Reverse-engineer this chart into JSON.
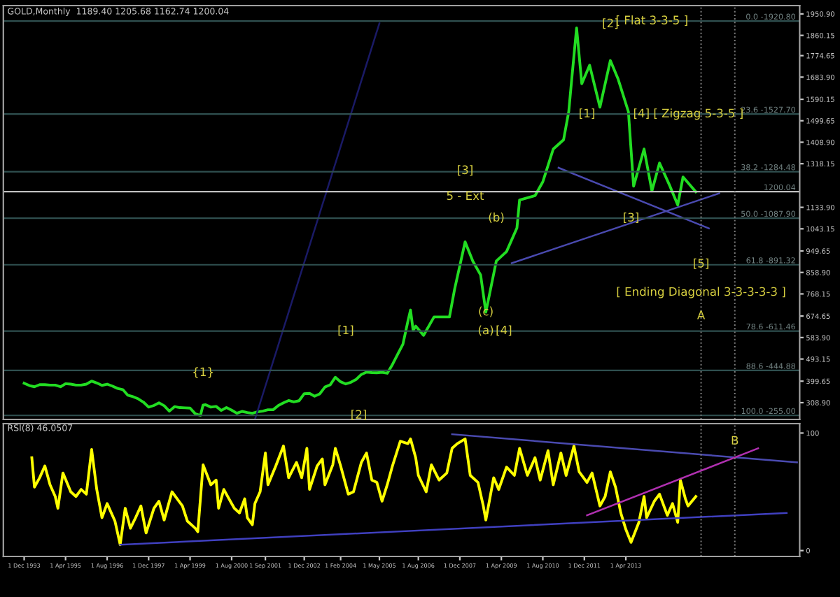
{
  "chart_data": [
    {
      "type": "line",
      "title": "GOLD,Monthly  1189.40 1205.68 1162.74 1200.04",
      "xlim": [
        "1993-04",
        "2018-11"
      ],
      "ylim": [
        238,
        1986
      ],
      "tick_labels": "y",
      "yticks": [
        {
          "value": 1950.9,
          "label": "1950.90"
        },
        {
          "value": 1860.15,
          "label": "1860.15"
        },
        {
          "value": 1774.65,
          "label": "1774.65"
        },
        {
          "value": 1683.9,
          "label": "1683.90"
        },
        {
          "value": 1590.15,
          "label": "1590.15"
        },
        {
          "value": 1499.65,
          "label": "1499.65"
        },
        {
          "value": 1408.9,
          "label": "1408.90"
        },
        {
          "value": 1318.15,
          "label": "1318.15"
        },
        {
          "value": 1133.9,
          "label": "1133.90"
        },
        {
          "value": 1043.15,
          "label": "1043.15"
        },
        {
          "value": 949.65,
          "label": "949.65"
        },
        {
          "value": 858.9,
          "label": "858.90"
        },
        {
          "value": 768.15,
          "label": "768.15"
        },
        {
          "value": 674.65,
          "label": "674.65"
        },
        {
          "value": 583.9,
          "label": "583.90"
        },
        {
          "value": 493.15,
          "label": "493.15"
        },
        {
          "value": 399.65,
          "label": "399.65"
        },
        {
          "value": 308.9,
          "label": "308.90"
        }
      ],
      "series": [
        {
          "color": "#22dd22",
          "x": [
            "1993-12",
            "1994-02",
            "1994-04",
            "1994-06",
            "1994-08",
            "1994-10",
            "1994-12",
            "1995-02",
            "1995-04",
            "1995-06",
            "1995-08",
            "1995-10",
            "1995-12",
            "1996-02",
            "1996-04",
            "1996-06",
            "1996-08",
            "1996-10",
            "1996-12",
            "1997-02",
            "1997-04",
            "1997-06",
            "1997-08",
            "1997-10",
            "1997-12",
            "1998-02",
            "1998-04",
            "1998-06",
            "1998-08",
            "1998-10",
            "1998-12",
            "1999-02",
            "1999-04",
            "1999-06",
            "1999-08",
            "1999-09",
            "1999-10",
            "1999-12",
            "2000-02",
            "2000-04",
            "2000-06",
            "2000-08",
            "2000-10",
            "2000-12",
            "2001-02",
            "2001-04",
            "2001-06",
            "2001-08",
            "2001-10",
            "2001-12",
            "2002-02",
            "2002-04",
            "2002-06",
            "2002-08",
            "2002-10",
            "2002-12",
            "2003-02",
            "2003-04",
            "2003-06",
            "2003-08",
            "2003-10",
            "2003-12",
            "2004-02",
            "2004-04",
            "2004-06",
            "2004-08",
            "2004-10",
            "2004-12",
            "2005-02",
            "2005-04",
            "2005-06",
            "2005-08",
            "2005-10",
            "2005-12",
            "2006-02",
            "2006-04",
            "2006-05",
            "2006-06",
            "2006-07",
            "2006-10",
            "2007-02",
            "2007-08",
            "2007-10",
            "2008-02",
            "2008-05",
            "2008-08",
            "2008-10",
            "2009-02",
            "2009-06",
            "2009-10",
            "2009-11",
            "2010-05",
            "2010-08",
            "2010-12",
            "2011-04",
            "2011-06",
            "2011-07",
            "2011-09",
            "2011-11",
            "2012-02",
            "2012-06",
            "2012-10",
            "2013-01",
            "2013-05",
            "2013-07",
            "2013-11",
            "2014-02",
            "2014-05",
            "2014-09",
            "2014-12",
            "2015-02",
            "2015-07"
          ],
          "values": [
            391,
            381,
            376,
            385,
            385,
            383,
            383,
            376,
            389,
            387,
            383,
            383,
            387,
            400,
            392,
            382,
            387,
            379,
            369,
            364,
            340,
            334,
            325,
            311,
            290,
            297,
            308,
            296,
            273,
            292,
            288,
            287,
            286,
            262,
            255,
            299,
            300,
            290,
            293,
            276,
            288,
            277,
            264,
            272,
            267,
            264,
            270,
            273,
            279,
            279,
            297,
            308,
            318,
            312,
            317,
            347,
            348,
            336,
            346,
            375,
            384,
            416,
            397,
            388,
            395,
            407,
            428,
            438,
            436,
            435,
            437,
            433,
            470,
            513,
            556,
            654,
            700,
            614,
            632,
            593,
            671,
            671,
            789,
            988,
            907,
            848,
            691,
            907,
            947,
            1047,
            1165,
            1183,
            1242,
            1380,
            1419,
            1538,
            1656,
            1892,
            1656,
            1734,
            1557,
            1754,
            1675,
            1538,
            1223,
            1380,
            1203,
            1321,
            1223,
            1144,
            1262,
            1200
          ]
        },
        {
          "type": "line",
          "color": "#4a4ab0",
          "x": [
            "2009-08",
            "2016-04"
          ],
          "values": [
            898,
            1193
          ]
        },
        {
          "type": "line",
          "color": "#4a4ab0",
          "x": [
            "2011-02",
            "2015-12"
          ],
          "values": [
            1301,
            1045
          ]
        },
        {
          "type": "line",
          "color": "#1a1a66",
          "x": [
            "2001-05",
            "2005-05"
          ],
          "values": [
            238,
            1911
          ]
        }
      ],
      "ref_lines": [
        {
          "axis": "y",
          "value": 1920.8,
          "label": "1920.80",
          "color": "#2f4f4f"
        },
        {
          "axis": "y",
          "value": 1527.7,
          "label": "1527.70",
          "color": "#2f4f4f"
        },
        {
          "axis": "y",
          "value": 1284.48,
          "label": "1284.48",
          "color": "#2f4f4f"
        },
        {
          "axis": "y",
          "value": 1087.9,
          "label": "1087.90",
          "color": "#2f4f4f"
        },
        {
          "axis": "y",
          "value": 891.32,
          "label": "891.32",
          "color": "#2f4f4f"
        },
        {
          "axis": "y",
          "value": 611.46,
          "label": "611.46",
          "color": "#2f4f4f"
        },
        {
          "axis": "y",
          "value": 444.88,
          "label": "444.88",
          "color": "#2f4f4f"
        },
        {
          "axis": "y",
          "value": 255.0,
          "label": "255.00",
          "color": "#2f4f4f"
        },
        {
          "axis": "y",
          "value": 1200.04,
          "label": "1200.04",
          "color": "#c0c0c0"
        },
        {
          "axis": "x",
          "value": "2015-09",
          "color": "#808080",
          "line_style": "dotted"
        },
        {
          "axis": "x",
          "value": "2016-10",
          "color": "#808080",
          "line_style": "dotted"
        }
      ],
      "annotations": [
        {
          "text": "0.0 -",
          "x": "2017-09",
          "y": 1920.8
        },
        {
          "text": "23.6 -",
          "x": "2017-09",
          "y": 1527.7
        },
        {
          "text": "38.2 -",
          "x": "2017-09",
          "y": 1284.48
        },
        {
          "text": "50.0 -",
          "x": "2017-09",
          "y": 1087.9
        },
        {
          "text": "61.8 -",
          "x": "2017-11",
          "y": 891.32
        },
        {
          "text": "78.6 -",
          "x": "2017-11",
          "y": 611.46
        },
        {
          "text": "88.6 -",
          "x": "2017-11",
          "y": 444.88
        },
        {
          "text": "100.0 -",
          "x": "2017-11",
          "y": 255.0
        },
        {
          "text": "{1}",
          "x": "1999-09",
          "y": 435
        },
        {
          "text": "[1]",
          "x": "2004-04",
          "y": 611.46
        },
        {
          "text": "[2]",
          "x": "2004-09",
          "y": 255.0
        },
        {
          "text": "[3]",
          "x": "2008-02",
          "y": 1288
        },
        {
          "text": "5 - Ext",
          "x": "2008-02",
          "y": 1179
        },
        {
          "text": "(b)",
          "x": "2009-02",
          "y": 1087.9
        },
        {
          "text": "(c)",
          "x": "2008-10",
          "y": 691
        },
        {
          "text": "(a)",
          "x": "2008-10",
          "y": 611.46
        },
        {
          "text": "[4]",
          "x": "2009-05",
          "y": 611.46
        },
        {
          "text": "[1]",
          "x": "2012-01",
          "y": 1527.7
        },
        {
          "text": "[2]",
          "x": "2012-10",
          "y": 1908
        },
        {
          "text": "[ Flat 3-3-5 ]",
          "x": "2014-02",
          "y": 1920.8
        },
        {
          "text": "[4]",
          "x": "2013-10",
          "y": 1527.7
        },
        {
          "text": "[ Zigzag 5-3-5 ]",
          "x": "2015-08",
          "y": 1527.7
        },
        {
          "text": "[3]",
          "x": "2013-06",
          "y": 1087.9
        },
        {
          "text": "[5]",
          "x": "2015-09",
          "y": 894
        },
        {
          "text": "[ Ending Diagonal 3-3-3-3-3 ]",
          "x": "2015-09",
          "y": 774
        },
        {
          "text": "A",
          "x": "2015-09",
          "y": 675
        }
      ]
    },
    {
      "type": "line",
      "title": "RSI(8) 46.0507",
      "xlim": [
        "1993-04",
        "2018-11"
      ],
      "ylim": [
        -5,
        108
      ],
      "yticks": [
        0,
        100
      ],
      "xticks": [
        {
          "value": "1993-12",
          "label": "1 Dec 1993"
        },
        {
          "value": "1995-04",
          "label": "1 Apr 1995"
        },
        {
          "value": "1996-08",
          "label": "1 Aug 1996"
        },
        {
          "value": "1997-12",
          "label": "1 Dec 1997"
        },
        {
          "value": "1999-04",
          "label": "1 Apr 1999"
        },
        {
          "value": "2000-08",
          "label": "1 Aug 2000"
        },
        {
          "value": "2001-09",
          "label": "1 Sep 2001"
        },
        {
          "value": "2002-12",
          "label": "1 Dec 2002"
        },
        {
          "value": "2004-02",
          "label": "1 Feb 2004"
        },
        {
          "value": "2005-05",
          "label": "1 May 2005"
        },
        {
          "value": "2006-08",
          "label": "1 Aug 2006"
        },
        {
          "value": "2007-12",
          "label": "1 Dec 2007"
        },
        {
          "value": "2009-04",
          "label": "1 Apr 2009"
        },
        {
          "value": "2010-08",
          "label": "1 Aug 2010"
        },
        {
          "value": "2011-12",
          "label": "1 Dec 2011"
        },
        {
          "value": "2013-04",
          "label": "1 Apr 2013"
        }
      ],
      "series": [
        {
          "color": "#ffff00",
          "x": [
            "1994-03",
            "1994-04",
            "1994-06",
            "1994-08",
            "1994-10",
            "1994-12",
            "1995-01",
            "1995-03",
            "1995-06",
            "1995-08",
            "1995-10",
            "1995-12",
            "1996-02",
            "1996-04",
            "1996-06",
            "1996-08",
            "1996-11",
            "1997-01",
            "1997-03",
            "1997-05",
            "1997-07",
            "1997-09",
            "1997-11",
            "1998-02",
            "1998-04",
            "1998-06",
            "1998-09",
            "1998-11",
            "1999-01",
            "1999-03",
            "1999-06",
            "1999-07",
            "1999-09",
            "1999-12",
            "2000-02",
            "2000-03",
            "2000-05",
            "2000-07",
            "2000-09",
            "2000-11",
            "2001-01",
            "2001-02",
            "2001-04",
            "2001-05",
            "2001-07",
            "2001-09",
            "2001-10",
            "2002-01",
            "2002-04",
            "2002-06",
            "2002-09",
            "2002-11",
            "2003-01",
            "2003-02",
            "2003-05",
            "2003-07",
            "2003-08",
            "2003-11",
            "2003-12",
            "2004-02",
            "2004-05",
            "2004-07",
            "2004-10",
            "2004-12",
            "2005-02",
            "2005-04",
            "2005-06",
            "2005-08",
            "2005-10",
            "2006-01",
            "2006-04",
            "2006-05",
            "2006-07",
            "2006-08",
            "2006-11",
            "2007-01",
            "2007-04",
            "2007-07",
            "2007-09",
            "2007-11",
            "2008-02",
            "2008-04",
            "2008-07",
            "2008-09",
            "2008-10",
            "2009-01",
            "2009-03",
            "2009-06",
            "2009-09",
            "2009-11",
            "2010-02",
            "2010-05",
            "2010-07",
            "2010-10",
            "2010-12",
            "2011-03",
            "2011-05",
            "2011-08",
            "2011-10",
            "2012-01",
            "2012-03",
            "2012-06",
            "2012-08",
            "2012-10",
            "2012-12",
            "2013-02",
            "2013-04",
            "2013-06",
            "2013-09",
            "2013-11",
            "2013-12",
            "2014-03",
            "2014-05",
            "2014-08",
            "2014-10",
            "2014-12",
            "2015-01",
            "2015-03",
            "2015-04",
            "2015-07"
          ],
          "values": [
            79,
            54,
            62,
            72,
            56,
            46,
            36,
            66,
            50,
            46,
            52,
            48,
            86,
            52,
            28,
            40,
            25,
            5,
            36,
            19,
            28,
            38,
            15,
            36,
            42,
            26,
            50,
            44,
            38,
            25,
            19,
            16,
            73,
            56,
            60,
            36,
            52,
            44,
            36,
            32,
            44,
            28,
            22,
            40,
            50,
            83,
            56,
            72,
            89,
            62,
            75,
            62,
            87,
            52,
            72,
            78,
            56,
            73,
            87,
            72,
            48,
            50,
            75,
            83,
            60,
            58,
            42,
            56,
            72,
            93,
            91,
            95,
            79,
            64,
            50,
            73,
            60,
            66,
            87,
            91,
            95,
            64,
            58,
            38,
            26,
            62,
            52,
            71,
            64,
            87,
            64,
            79,
            60,
            85,
            56,
            83,
            64,
            89,
            67,
            58,
            66,
            38,
            46,
            67,
            54,
            32,
            18,
            7,
            24,
            46,
            28,
            42,
            48,
            30,
            40,
            24,
            60,
            44,
            38,
            46
          ]
        },
        {
          "type": "line",
          "color": "#4a4ab0",
          "x": [
            "2007-09",
            "2018-10"
          ],
          "values": [
            99,
            75
          ]
        },
        {
          "type": "line",
          "color": "#b030b0",
          "x": [
            "2012-01",
            "2017-07"
          ],
          "values": [
            30,
            87
          ]
        },
        {
          "type": "line",
          "color": "#4040c0",
          "x": [
            "1997-01",
            "2018-06"
          ],
          "values": [
            5,
            32
          ]
        }
      ],
      "ref_lines": [
        {
          "axis": "x",
          "value": "2015-09",
          "color": "#808080",
          "line_style": "dotted"
        },
        {
          "axis": "x",
          "value": "2016-10",
          "color": "#808080",
          "line_style": "dotted"
        }
      ],
      "annotations": [
        {
          "text": "B",
          "x": "2016-10",
          "y": 93
        }
      ]
    }
  ]
}
